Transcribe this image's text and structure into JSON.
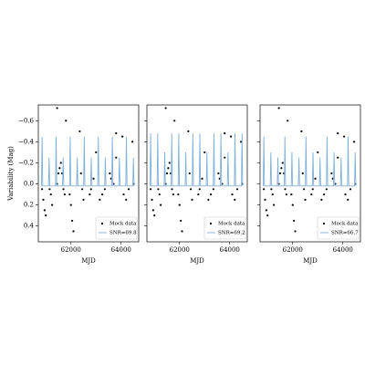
{
  "chart_data": [
    {
      "type": "scatter-line",
      "ylabel": "Variability (Mag)",
      "xlabel": "MJD",
      "xlim": [
        60700,
        64700
      ],
      "xticks": [
        62000,
        64000
      ],
      "ylim": [
        0.55,
        -0.75
      ],
      "yticks": [
        {
          "value": -0.6,
          "label": "−0.6"
        },
        {
          "value": -0.4,
          "label": "−0.4"
        },
        {
          "value": -0.2,
          "label": "−0.2"
        },
        {
          "value": 0.0,
          "label": "0.0"
        },
        {
          "value": 0.2,
          "label": "0.2"
        },
        {
          "value": 0.4,
          "label": "0.4"
        }
      ],
      "series": [
        {
          "name": "Mock data",
          "color": "#000000",
          "x": [
            60850,
            60900,
            60950,
            61000,
            61150,
            61200,
            61250,
            61450,
            61500,
            61550,
            61600,
            61650,
            61700,
            61750,
            61450,
            61800,
            61950,
            62000,
            62050,
            62100,
            62350,
            62400,
            62450,
            62500,
            62750,
            62800,
            62900,
            63000,
            63150,
            63250,
            63350,
            63550,
            63600,
            63700,
            63800,
            63800,
            64050,
            64100,
            64200,
            64300,
            64450,
            64500
          ],
          "values": [
            0.05,
            0.15,
            0.25,
            0.3,
            0.05,
            0.1,
            0.2,
            0.0,
            -0.1,
            -0.15,
            -0.2,
            -0.1,
            0.05,
            0.1,
            -0.72,
            -0.6,
            0.1,
            0.2,
            0.35,
            0.45,
            -0.5,
            -0.1,
            0.05,
            0.15,
            0.1,
            0.05,
            -0.05,
            -0.3,
            0.15,
            0.1,
            0.05,
            -0.1,
            -0.05,
            0.0,
            -0.25,
            -0.48,
            -0.45,
            0.1,
            0.15,
            0.05,
            -0.4,
            0.0
          ]
        },
        {
          "name": "SNR=69.8",
          "color": "#7fb0d8",
          "x": [
            60825,
            60850,
            60875,
            61105,
            61130,
            61155,
            61385,
            61410,
            61435,
            61665,
            61690,
            61715,
            61945,
            61970,
            61995,
            62225,
            62250,
            62275,
            62505,
            62530,
            62555,
            62785,
            62810,
            62835,
            63065,
            63090,
            63115,
            63345,
            63370,
            63395,
            63625,
            63650,
            63675,
            63905,
            63930,
            63955,
            64185,
            64210,
            64235,
            64465,
            64490,
            64515
          ],
          "values": [
            0.02,
            -0.45,
            0.02,
            0.02,
            -0.25,
            0.02,
            0.02,
            -0.45,
            0.02,
            0.02,
            -0.25,
            0.02,
            0.02,
            -0.45,
            0.02,
            0.02,
            -0.25,
            0.02,
            0.02,
            -0.45,
            0.02,
            0.02,
            -0.25,
            0.02,
            0.02,
            -0.45,
            0.02,
            0.02,
            -0.25,
            0.02,
            0.02,
            -0.45,
            0.02,
            0.02,
            -0.25,
            0.02,
            0.02,
            -0.45,
            0.02,
            0.02,
            -0.25,
            0.02
          ]
        }
      ]
    },
    {
      "type": "scatter-line",
      "xlabel": "MJD",
      "xlim": [
        60700,
        64700
      ],
      "xticks": [
        62000,
        64000
      ],
      "ylim": [
        0.55,
        -0.75
      ],
      "yticks": [
        -0.6,
        -0.4,
        -0.2,
        0.0,
        0.2,
        0.4
      ],
      "series": [
        {
          "name": "Mock data",
          "color": "#000000",
          "x": [
            60850,
            60900,
            60950,
            61000,
            61150,
            61200,
            61250,
            61450,
            61500,
            61550,
            61600,
            61650,
            61700,
            61750,
            61450,
            61800,
            61950,
            62000,
            62050,
            62100,
            62350,
            62400,
            62450,
            62500,
            62750,
            62800,
            62900,
            63000,
            63150,
            63250,
            63350,
            63550,
            63600,
            63700,
            63800,
            63800,
            64050,
            64100,
            64200,
            64300,
            64450,
            64500
          ],
          "values": [
            0.05,
            0.15,
            0.25,
            0.3,
            0.05,
            0.1,
            0.2,
            0.0,
            -0.1,
            -0.15,
            -0.2,
            -0.1,
            0.05,
            0.1,
            -0.72,
            -0.6,
            0.1,
            0.2,
            0.35,
            0.45,
            -0.5,
            -0.1,
            0.05,
            0.15,
            0.1,
            0.05,
            -0.05,
            -0.3,
            0.15,
            0.1,
            0.05,
            -0.1,
            -0.05,
            0.0,
            -0.25,
            -0.48,
            -0.45,
            0.1,
            0.15,
            0.05,
            -0.4,
            0.0
          ]
        },
        {
          "name": "SNR=69.2",
          "color": "#7fb0d8",
          "x": [
            60825,
            60850,
            60875,
            61105,
            61130,
            61155,
            61385,
            61410,
            61435,
            61665,
            61690,
            61715,
            61945,
            61970,
            61995,
            62225,
            62250,
            62275,
            62505,
            62530,
            62555,
            62785,
            62810,
            62835,
            63065,
            63090,
            63115,
            63345,
            63370,
            63395,
            63625,
            63650,
            63675,
            63905,
            63930,
            63955,
            64185,
            64210,
            64235,
            64465,
            64490,
            64515
          ],
          "values": [
            0.02,
            -0.48,
            0.02,
            0.02,
            -0.48,
            0.02,
            0.02,
            -0.3,
            0.02,
            0.02,
            -0.48,
            0.02,
            0.02,
            -0.48,
            0.02,
            0.02,
            -0.3,
            0.02,
            0.02,
            -0.48,
            0.02,
            0.02,
            -0.48,
            0.02,
            0.02,
            -0.3,
            0.02,
            0.02,
            -0.48,
            0.02,
            0.02,
            -0.48,
            0.02,
            0.02,
            -0.3,
            0.02,
            0.02,
            -0.48,
            0.02,
            0.02,
            -0.48,
            0.02
          ]
        }
      ]
    },
    {
      "type": "scatter-line",
      "xlabel": "MJD",
      "xlim": [
        60700,
        64700
      ],
      "xticks": [
        62000,
        64000
      ],
      "ylim": [
        0.55,
        -0.75
      ],
      "yticks": [
        -0.6,
        -0.4,
        -0.2,
        0.0,
        0.2,
        0.4
      ],
      "series": [
        {
          "name": "Mock data",
          "color": "#000000",
          "x": [
            60850,
            60900,
            60950,
            61000,
            61150,
            61200,
            61250,
            61450,
            61500,
            61550,
            61600,
            61650,
            61700,
            61750,
            61450,
            61800,
            61950,
            62000,
            62050,
            62100,
            62350,
            62400,
            62450,
            62500,
            62750,
            62800,
            62900,
            63000,
            63150,
            63250,
            63350,
            63550,
            63600,
            63700,
            63800,
            63800,
            64050,
            64100,
            64200,
            64300,
            64450,
            64500
          ],
          "values": [
            0.05,
            0.15,
            0.25,
            0.3,
            0.05,
            0.1,
            0.2,
            0.0,
            -0.1,
            -0.15,
            -0.2,
            -0.1,
            0.05,
            0.1,
            -0.72,
            -0.6,
            0.1,
            0.2,
            0.35,
            0.45,
            -0.5,
            -0.1,
            0.05,
            0.15,
            0.1,
            0.05,
            -0.05,
            -0.3,
            0.15,
            0.1,
            0.05,
            -0.1,
            -0.05,
            0.0,
            -0.25,
            -0.48,
            -0.45,
            0.1,
            0.15,
            0.05,
            -0.4,
            0.0
          ]
        },
        {
          "name": "SNR=66.7",
          "color": "#7fb0d8",
          "x": [
            60825,
            60850,
            60875,
            61105,
            61130,
            61155,
            61385,
            61410,
            61435,
            61665,
            61690,
            61715,
            61945,
            61970,
            61995,
            62225,
            62250,
            62275,
            62505,
            62530,
            62555,
            62785,
            62810,
            62835,
            63065,
            63090,
            63115,
            63345,
            63370,
            63395,
            63625,
            63650,
            63675,
            63905,
            63930,
            63955,
            64185,
            64210,
            64235,
            64465,
            64490,
            64515
          ],
          "values": [
            0.02,
            -0.45,
            0.02,
            0.02,
            -0.3,
            0.02,
            0.02,
            -0.25,
            0.02,
            0.02,
            -0.45,
            0.02,
            0.02,
            -0.3,
            0.02,
            0.02,
            -0.25,
            0.02,
            0.02,
            -0.45,
            0.02,
            0.02,
            -0.3,
            0.02,
            0.02,
            -0.25,
            0.02,
            0.02,
            -0.45,
            0.02,
            0.02,
            -0.3,
            0.02,
            0.02,
            -0.25,
            0.02,
            0.02,
            -0.45,
            0.02,
            0.02,
            -0.3,
            0.02
          ]
        }
      ]
    }
  ]
}
